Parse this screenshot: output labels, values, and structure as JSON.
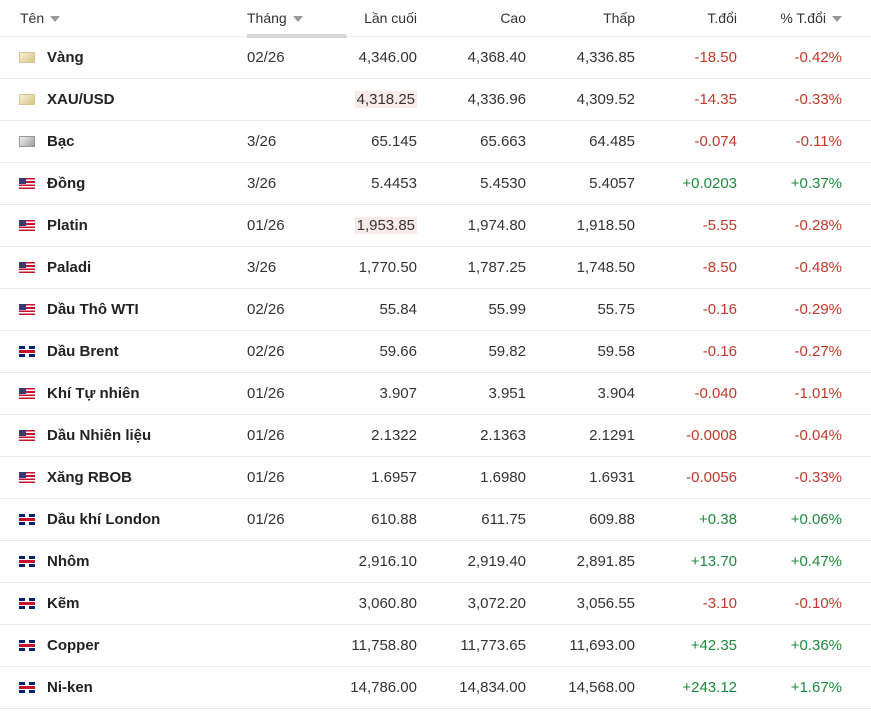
{
  "headers": {
    "name": "Tên",
    "month": "Tháng",
    "last": "Lần cuối",
    "high": "Cao",
    "low": "Thấp",
    "chg": "T.đổi",
    "pct": "% T.đổi"
  },
  "colors": {
    "negative": "#c0392b",
    "positive": "#1e8a3e"
  },
  "rows": [
    {
      "icon": "gold",
      "name": "Vàng",
      "month": "02/26",
      "last": "4,346.00",
      "high": "4,368.40",
      "low": "4,336.85",
      "chg": "-18.50",
      "pct": "-0.42%",
      "dir": "neg"
    },
    {
      "icon": "gold",
      "name": "XAU/USD",
      "month": "",
      "last": "4,318.25",
      "high": "4,336.96",
      "low": "4,309.52",
      "chg": "-14.35",
      "pct": "-0.33%",
      "dir": "neg",
      "hl": true
    },
    {
      "icon": "silver",
      "name": "Bạc",
      "month": "3/26",
      "last": "65.145",
      "high": "65.663",
      "low": "64.485",
      "chg": "-0.074",
      "pct": "-0.11%",
      "dir": "neg"
    },
    {
      "icon": "us",
      "name": "Đồng",
      "month": "3/26",
      "last": "5.4453",
      "high": "5.4530",
      "low": "5.4057",
      "chg": "+0.0203",
      "pct": "+0.37%",
      "dir": "pos"
    },
    {
      "icon": "us",
      "name": "Platin",
      "month": "01/26",
      "last": "1,953.85",
      "high": "1,974.80",
      "low": "1,918.50",
      "chg": "-5.55",
      "pct": "-0.28%",
      "dir": "neg",
      "hl": true
    },
    {
      "icon": "us",
      "name": "Paladi",
      "month": "3/26",
      "last": "1,770.50",
      "high": "1,787.25",
      "low": "1,748.50",
      "chg": "-8.50",
      "pct": "-0.48%",
      "dir": "neg"
    },
    {
      "icon": "us",
      "name": "Dầu Thô WTI",
      "month": "02/26",
      "last": "55.84",
      "high": "55.99",
      "low": "55.75",
      "chg": "-0.16",
      "pct": "-0.29%",
      "dir": "neg"
    },
    {
      "icon": "uk",
      "name": "Dầu Brent",
      "month": "02/26",
      "last": "59.66",
      "high": "59.82",
      "low": "59.58",
      "chg": "-0.16",
      "pct": "-0.27%",
      "dir": "neg"
    },
    {
      "icon": "us",
      "name": "Khí Tự nhiên",
      "month": "01/26",
      "last": "3.907",
      "high": "3.951",
      "low": "3.904",
      "chg": "-0.040",
      "pct": "-1.01%",
      "dir": "neg"
    },
    {
      "icon": "us",
      "name": "Dầu Nhiên liệu",
      "month": "01/26",
      "last": "2.1322",
      "high": "2.1363",
      "low": "2.1291",
      "chg": "-0.0008",
      "pct": "-0.04%",
      "dir": "neg"
    },
    {
      "icon": "us",
      "name": "Xăng RBOB",
      "month": "01/26",
      "last": "1.6957",
      "high": "1.6980",
      "low": "1.6931",
      "chg": "-0.0056",
      "pct": "-0.33%",
      "dir": "neg"
    },
    {
      "icon": "uk",
      "name": "Dầu khí London",
      "month": "01/26",
      "last": "610.88",
      "high": "611.75",
      "low": "609.88",
      "chg": "+0.38",
      "pct": "+0.06%",
      "dir": "pos"
    },
    {
      "icon": "uk",
      "name": "Nhôm",
      "month": "",
      "last": "2,916.10",
      "high": "2,919.40",
      "low": "2,891.85",
      "chg": "+13.70",
      "pct": "+0.47%",
      "dir": "pos"
    },
    {
      "icon": "uk",
      "name": "Kẽm",
      "month": "",
      "last": "3,060.80",
      "high": "3,072.20",
      "low": "3,056.55",
      "chg": "-3.10",
      "pct": "-0.10%",
      "dir": "neg"
    },
    {
      "icon": "uk",
      "name": "Copper",
      "month": "",
      "last": "11,758.80",
      "high": "11,773.65",
      "low": "11,693.00",
      "chg": "+42.35",
      "pct": "+0.36%",
      "dir": "pos"
    },
    {
      "icon": "uk",
      "name": "Ni-ken",
      "month": "",
      "last": "14,786.00",
      "high": "14,834.00",
      "low": "14,568.00",
      "chg": "+243.12",
      "pct": "+1.67%",
      "dir": "pos"
    }
  ]
}
